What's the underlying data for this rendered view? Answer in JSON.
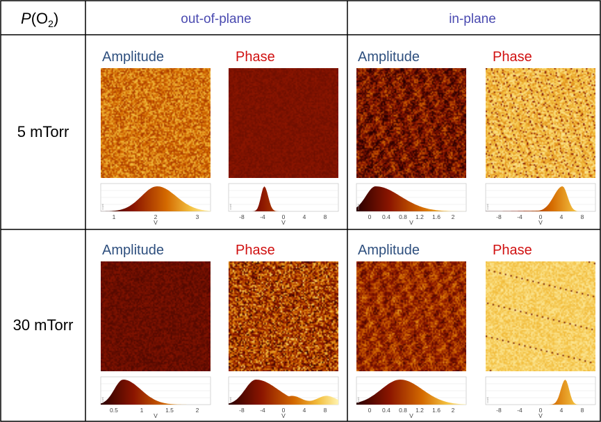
{
  "header": {
    "corner_p": "P",
    "corner_o": "(O",
    "corner_sub": "2",
    "corner_close": ")",
    "col_out": "out-of-plane",
    "col_in": "in-plane"
  },
  "rows": [
    {
      "label": "5 mTorr"
    },
    {
      "label": "30 mTorr"
    }
  ],
  "panel_labels": {
    "amplitude": "Amplitude",
    "phase": "Phase"
  },
  "axis_unit": "V",
  "histogram_ylabel": "count",
  "colors": {
    "grid_line": "#000000",
    "header_text": "#4a4ab0",
    "amplitude_text": "#2e4f7e",
    "phase_text": "#d01010",
    "colormap": [
      "#2a0000",
      "#8b1500",
      "#d46a00",
      "#f3c040",
      "#fff3b0"
    ]
  },
  "panels": [
    {
      "id": "r0c0",
      "row": 0,
      "col": 0,
      "kind": "Amplitude",
      "seed": 11,
      "base": 0.62,
      "spread": 0.2,
      "stripes": "fine",
      "ticks": [
        "1",
        "2",
        "3"
      ],
      "hist": {
        "type": "bump",
        "xmin": 0,
        "xmax": 3.5,
        "peak": 1.8,
        "lw": 0.5,
        "rw": 0.6
      }
    },
    {
      "id": "r0c1",
      "row": 0,
      "col": 1,
      "kind": "Phase",
      "seed": 23,
      "base": 0.26,
      "spread": 0.05,
      "stripes": "fine",
      "ticks": [
        "-8",
        "-4",
        "0",
        "4",
        "8"
      ],
      "hist": {
        "type": "bump",
        "xmin": -10,
        "xmax": 10,
        "peak": -3.5,
        "lw": 0.6,
        "rw": 0.7
      }
    },
    {
      "id": "r0c2",
      "row": 0,
      "col": 2,
      "kind": "Amplitude",
      "seed": 37,
      "base": 0.25,
      "spread": 0.24,
      "stripes": "blob",
      "ticks": [
        "0",
        "0.4",
        "0.8",
        "1.2",
        "1.6",
        "2"
      ],
      "hist": {
        "type": "bump",
        "xmin": 0,
        "xmax": 2,
        "peak": 0.35,
        "lw": 0.18,
        "rw": 0.45
      }
    },
    {
      "id": "r0c3",
      "row": 0,
      "col": 3,
      "kind": "Phase",
      "seed": 41,
      "base": 0.82,
      "spread": 0.14,
      "stripes": "dash",
      "ticks": [
        "-8",
        "-4",
        "0",
        "4",
        "8"
      ],
      "hist": {
        "type": "tail",
        "xmin": -10,
        "xmax": 10,
        "peak": 4,
        "lw": 1.6,
        "rw": 0.9
      }
    },
    {
      "id": "r1c0",
      "row": 1,
      "col": 0,
      "kind": "Amplitude",
      "seed": 53,
      "base": 0.2,
      "spread": 0.08,
      "stripes": "fine",
      "ticks": [
        "0.5",
        "1",
        "1.5",
        "2"
      ],
      "hist": {
        "type": "bump",
        "xmin": 0,
        "xmax": 2.2,
        "peak": 0.45,
        "lw": 0.18,
        "rw": 0.35
      }
    },
    {
      "id": "r1c1",
      "row": 1,
      "col": 1,
      "kind": "Phase",
      "seed": 67,
      "base": 0.45,
      "spread": 0.34,
      "stripes": "coarse",
      "ticks": [
        "-8",
        "-4",
        "0",
        "4",
        "8"
      ],
      "hist": {
        "type": "broad",
        "xmin": -10,
        "xmax": 10,
        "peak": -5,
        "lw": 2.0,
        "rw": 4.0
      }
    },
    {
      "id": "r1c2",
      "row": 1,
      "col": 2,
      "kind": "Amplitude",
      "seed": 79,
      "base": 0.38,
      "spread": 0.2,
      "stripes": "blob",
      "ticks": [
        "0",
        "0.4",
        "0.8",
        "1.2",
        "1.6",
        "2"
      ],
      "hist": {
        "type": "bump",
        "xmin": 0,
        "xmax": 2,
        "peak": 0.8,
        "lw": 0.35,
        "rw": 0.4
      }
    },
    {
      "id": "r1c3",
      "row": 1,
      "col": 3,
      "kind": "Phase",
      "seed": 83,
      "base": 0.88,
      "spread": 0.08,
      "stripes": "sparse",
      "ticks": [
        "-8",
        "-4",
        "0",
        "4",
        "8"
      ],
      "hist": {
        "type": "bump",
        "xmin": -10,
        "xmax": 10,
        "peak": 4.5,
        "lw": 0.8,
        "rw": 0.7
      }
    }
  ]
}
